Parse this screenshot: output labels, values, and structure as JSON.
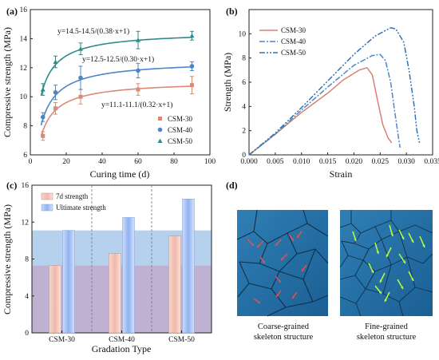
{
  "chart_data": [
    {
      "panel": "(a)",
      "type": "scatter",
      "xlabel": "Curing time (d)",
      "ylabel": "Compressive strength (MPa)",
      "xlim": [
        0,
        100
      ],
      "ylim": [
        6,
        16
      ],
      "xticks": [
        0,
        20,
        40,
        60,
        80,
        100
      ],
      "yticks": [
        6,
        8,
        10,
        12,
        14,
        16
      ],
      "legend_position": "lower-right",
      "x": [
        7,
        14,
        28,
        60,
        90
      ],
      "series": [
        {
          "name": "CSM-30",
          "marker": "square",
          "color": "#d98b78",
          "values": [
            7.3,
            9.2,
            10.0,
            10.5,
            10.8
          ],
          "errors": [
            0.3,
            0.4,
            0.5,
            0.4,
            0.6
          ],
          "fit_label": "y=11.1-11.1/(0.32·x+1)",
          "fit": {
            "a": 11.1,
            "k": 0.32
          }
        },
        {
          "name": "CSM-40",
          "marker": "circle",
          "color": "#4c86c8",
          "values": [
            8.6,
            10.3,
            11.3,
            11.8,
            12.1
          ],
          "errors": [
            0.3,
            0.5,
            0.8,
            0.5,
            0.3
          ],
          "fit_label": "y=12.5-12.5/(0.30·x+1)",
          "fit": {
            "a": 12.5,
            "k": 0.3
          }
        },
        {
          "name": "CSM-50",
          "marker": "triangle",
          "color": "#2e8b8b",
          "values": [
            10.5,
            12.4,
            13.3,
            13.9,
            14.2
          ],
          "errors": [
            0.4,
            0.4,
            0.4,
            0.6,
            0.3
          ],
          "fit_label": "y=14.5-14.5/(0.38·x+1)",
          "fit": {
            "a": 14.5,
            "k": 0.38
          }
        }
      ]
    },
    {
      "panel": "(b)",
      "type": "line",
      "xlabel": "Strain",
      "ylabel": "Strength (MPa)",
      "xlim": [
        0,
        0.035
      ],
      "ylim": [
        0,
        12
      ],
      "xticks": [
        "0.000",
        "0.005",
        "0.010",
        "0.015",
        "0.020",
        "0.025",
        "0.030",
        "0.035"
      ],
      "yticks": [
        0,
        2,
        4,
        6,
        8,
        10
      ],
      "legend_position": "top-left",
      "series": [
        {
          "name": "CSM-30",
          "style": "solid",
          "color": "#d9826f",
          "points": [
            [
              0,
              0
            ],
            [
              0.005,
              1.7
            ],
            [
              0.01,
              3.5
            ],
            [
              0.015,
              5.1
            ],
            [
              0.018,
              6.2
            ],
            [
              0.021,
              7.0
            ],
            [
              0.0225,
              7.2
            ],
            [
              0.0235,
              6.6
            ],
            [
              0.0245,
              4.5
            ],
            [
              0.0255,
              2.5
            ],
            [
              0.0265,
              1.4
            ],
            [
              0.0272,
              1.0
            ]
          ]
        },
        {
          "name": "CSM-40",
          "style": "dashdot",
          "color": "#4c86c8",
          "points": [
            [
              0,
              0
            ],
            [
              0.005,
              1.7
            ],
            [
              0.01,
              3.7
            ],
            [
              0.015,
              5.6
            ],
            [
              0.02,
              7.4
            ],
            [
              0.0235,
              8.2
            ],
            [
              0.025,
              8.3
            ],
            [
              0.026,
              7.8
            ],
            [
              0.027,
              6.0
            ],
            [
              0.0278,
              3.5
            ],
            [
              0.0285,
              1.4
            ],
            [
              0.0288,
              0.6
            ]
          ]
        },
        {
          "name": "CSM-50",
          "style": "dashdotdot",
          "color": "#2e74b5",
          "points": [
            [
              0,
              0
            ],
            [
              0.005,
              1.8
            ],
            [
              0.01,
              3.9
            ],
            [
              0.015,
              6.1
            ],
            [
              0.02,
              8.3
            ],
            [
              0.024,
              9.8
            ],
            [
              0.027,
              10.5
            ],
            [
              0.028,
              10.4
            ],
            [
              0.0295,
              9.3
            ],
            [
              0.0305,
              7.0
            ],
            [
              0.0315,
              4.0
            ],
            [
              0.032,
              2.0
            ],
            [
              0.0325,
              1.0
            ]
          ]
        }
      ]
    },
    {
      "panel": "(c)",
      "type": "bar",
      "xlabel": "Gradation Type",
      "ylabel": "Compressive strength (MPa)",
      "ylim": [
        0,
        16
      ],
      "yticks": [
        0,
        4,
        8,
        12,
        16
      ],
      "legend_position": "top-left",
      "categories": [
        "CSM-30",
        "CSM-40",
        "CSM-50"
      ],
      "series": [
        {
          "name": "7d strength",
          "color": "#f0b8ab",
          "values": [
            7.3,
            8.6,
            10.5
          ]
        },
        {
          "name": "Ultimate strength",
          "color": "#9dbcf2",
          "values": [
            11.1,
            12.5,
            14.5
          ]
        }
      ],
      "bands": [
        {
          "from": 7.3,
          "to": 11.1,
          "color": "#a9c9ea"
        },
        {
          "from": 0,
          "to": 7.3,
          "color": "#b3a3c9"
        }
      ]
    }
  ],
  "panel_d": {
    "label": "(d)",
    "images": [
      {
        "caption_line1": "Coarse-grained",
        "caption_line2": "skeleton structure",
        "arrow_color": "#e0524d"
      },
      {
        "caption_line1": "Fine-grained",
        "caption_line2": "skeleton structure",
        "arrow_color": "#b8ff3c"
      }
    ]
  }
}
